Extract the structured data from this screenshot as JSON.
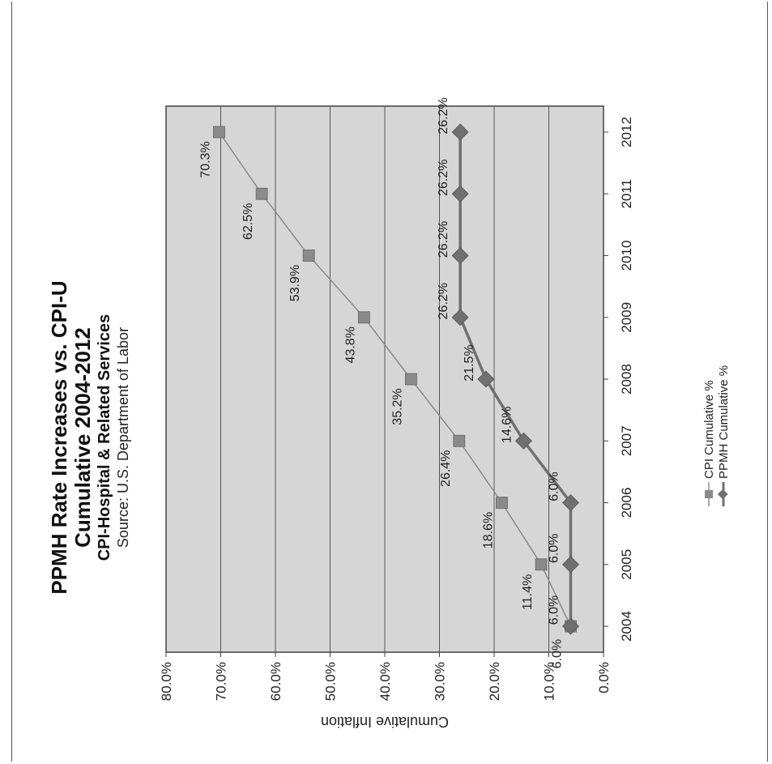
{
  "chart_data": {
    "type": "line",
    "title": "PPMH Rate Increases vs. CPI-U",
    "subtitle": "Cumulative 2004-2012",
    "subtitle2": "CPI-Hospital & Related Services",
    "source": "Source: U.S. Department of Labor",
    "ylabel": "Cumulative Inflation",
    "xlabel": "",
    "x": [
      "2004",
      "2005",
      "2006",
      "2007",
      "2008",
      "2009",
      "2010",
      "2011",
      "2012"
    ],
    "ylim": [
      0,
      80
    ],
    "yticks": [
      "0.0%",
      "10.0%",
      "20.0%",
      "30.0%",
      "40.0%",
      "50.0%",
      "60.0%",
      "70.0%",
      "80.0%"
    ],
    "grid": true,
    "orientation": "rotated 90° counter-clockwise",
    "legend_position": "bottom",
    "series": [
      {
        "name": "CPI Cumulative %",
        "color": "#8a8a8a",
        "marker": "square",
        "values": [
          6.0,
          11.4,
          18.6,
          26.4,
          35.2,
          43.8,
          53.9,
          62.5,
          70.3
        ],
        "labels": [
          "6.0%",
          "11.4%",
          "18.6%",
          "26.4%",
          "35.2%",
          "43.8%",
          "53.9%",
          "62.5%",
          "70.3%"
        ]
      },
      {
        "name": "PPMH Cumulative %",
        "color": "#707070",
        "marker": "diamond",
        "values": [
          6.0,
          6.0,
          6.0,
          14.6,
          21.5,
          26.2,
          26.2,
          26.2,
          26.2
        ],
        "labels": [
          "6.0%",
          "6.0%",
          "6.0%",
          "14.6%",
          "21.5%",
          "26.2%",
          "26.2%",
          "26.2%",
          "26.2%"
        ]
      }
    ]
  }
}
